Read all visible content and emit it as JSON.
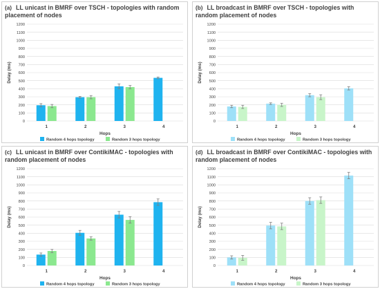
{
  "colors": {
    "random4": "#1fb3ef",
    "random3": "#8be88f",
    "random4_light": "#9ee0f8",
    "random3_light": "#c8f5c9",
    "grid": "#d9d9d9",
    "axis_text": "#404040",
    "error_bar": "#7f7f7f"
  },
  "chart_data": [
    {
      "type": "bar",
      "panel_label": "(a)",
      "title": "LL unicast in BMRF over TSCH - topologies with random placement of nodes",
      "xlabel": "Hops",
      "ylabel": "Delay (ms)",
      "ylim": [
        0,
        1200
      ],
      "ytick_step": 100,
      "grid": true,
      "legend_position": "bottom",
      "categories": [
        "1",
        "2",
        "3",
        "4"
      ],
      "series": [
        {
          "name": "Random 4 hops topology",
          "values": [
            195,
            295,
            430,
            535
          ],
          "errors": [
            20,
            10,
            30,
            10
          ],
          "color_key": "random4"
        },
        {
          "name": "Random 3 hops topology",
          "values": [
            185,
            295,
            420,
            null
          ],
          "errors": [
            20,
            20,
            20,
            null
          ],
          "color_key": "random3"
        }
      ]
    },
    {
      "type": "bar",
      "panel_label": "(b)",
      "title": "LL broadcast in BMRF over TSCH - topologies with random placement of nodes",
      "xlabel": "Hops",
      "ylabel": "Delay (ms)",
      "ylim": [
        0,
        1200
      ],
      "ytick_step": 100,
      "grid": true,
      "legend_position": "bottom",
      "categories": [
        "1",
        "2",
        "3",
        "4"
      ],
      "series": [
        {
          "name": "Random 4 hops topology",
          "values": [
            180,
            215,
            320,
            405
          ],
          "errors": [
            15,
            10,
            20,
            20
          ],
          "color_key": "random4_light"
        },
        {
          "name": "Random 3 hops topology",
          "values": [
            175,
            200,
            295,
            null
          ],
          "errors": [
            20,
            20,
            30,
            null
          ],
          "color_key": "random3_light"
        }
      ]
    },
    {
      "type": "bar",
      "panel_label": "(c)",
      "title": "LL unicast in BMRF over ContikiMAC - topologies with random placement of nodes",
      "xlabel": "Hops",
      "ylabel": "Delay (ms)",
      "ylim": [
        0,
        1200
      ],
      "ytick_step": 100,
      "grid": true,
      "legend_position": "bottom",
      "categories": [
        "1",
        "2",
        "3",
        "4"
      ],
      "series": [
        {
          "name": "Random 4 hops topology",
          "values": [
            135,
            405,
            630,
            785
          ],
          "errors": [
            20,
            30,
            40,
            40
          ],
          "color_key": "random4"
        },
        {
          "name": "Random 3 hops topology",
          "values": [
            180,
            335,
            565,
            null
          ],
          "errors": [
            20,
            20,
            40,
            null
          ],
          "color_key": "random3"
        }
      ]
    },
    {
      "type": "bar",
      "panel_label": "(d)",
      "title": "LL broadcast in BMRF over ContikiMAC - topologies with random placement of nodes",
      "xlabel": "Hops",
      "ylabel": "Delay (ms)",
      "ylim": [
        0,
        1200
      ],
      "ytick_step": 100,
      "grid": true,
      "legend_position": "bottom",
      "categories": [
        "1",
        "2",
        "3",
        "4"
      ],
      "series": [
        {
          "name": "Random 4 hops topology",
          "values": [
            100,
            495,
            800,
            1115
          ],
          "errors": [
            20,
            40,
            40,
            40
          ],
          "color_key": "random4_light"
        },
        {
          "name": "Random 3 hops topology",
          "values": [
            95,
            485,
            810,
            null
          ],
          "errors": [
            30,
            40,
            40,
            null
          ],
          "color_key": "random3_light"
        }
      ]
    }
  ]
}
